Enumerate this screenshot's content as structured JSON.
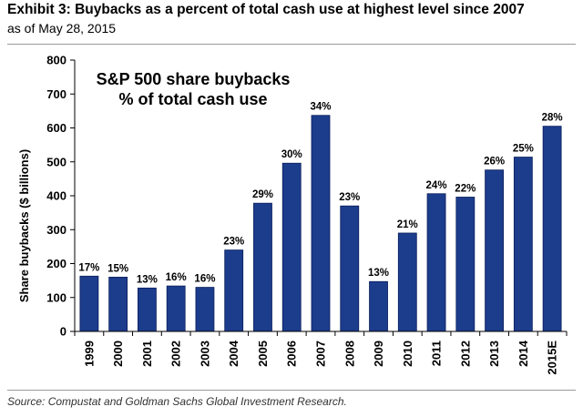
{
  "header": {
    "title": "Exhibit 3: Buybacks as a percent of total cash use at highest level since 2007",
    "subtitle": "as of May 28, 2015"
  },
  "footer": {
    "source": "Source: Compustat and Goldman Sachs Global Investment Research."
  },
  "colors": {
    "bar": "#1c3c8c",
    "bar_stroke": "#0a1f5c",
    "axis": "#000000"
  },
  "chart_data": {
    "type": "bar",
    "title_lines": [
      "S&P 500 share buybacks",
      "% of total cash use"
    ],
    "xlabel": "",
    "ylabel": "Share buybacks ($ billions)",
    "ylim": [
      0,
      800
    ],
    "yticks": [
      0,
      100,
      200,
      300,
      400,
      500,
      600,
      700,
      800
    ],
    "grid": false,
    "categories": [
      "1999",
      "2000",
      "2001",
      "2002",
      "2003",
      "2004",
      "2005",
      "2006",
      "2007",
      "2008",
      "2009",
      "2010",
      "2011",
      "2012",
      "2013",
      "2014",
      "2015E"
    ],
    "series": [
      {
        "name": "Share buybacks ($ billions)",
        "values": [
          163,
          160,
          128,
          134,
          130,
          240,
          378,
          496,
          637,
          370,
          147,
          290,
          406,
          396,
          476,
          514,
          605
        ]
      }
    ],
    "data_labels": [
      "17%",
      "15%",
      "13%",
      "16%",
      "16%",
      "23%",
      "29%",
      "30%",
      "34%",
      "23%",
      "13%",
      "21%",
      "24%",
      "22%",
      "26%",
      "25%",
      "28%"
    ]
  }
}
